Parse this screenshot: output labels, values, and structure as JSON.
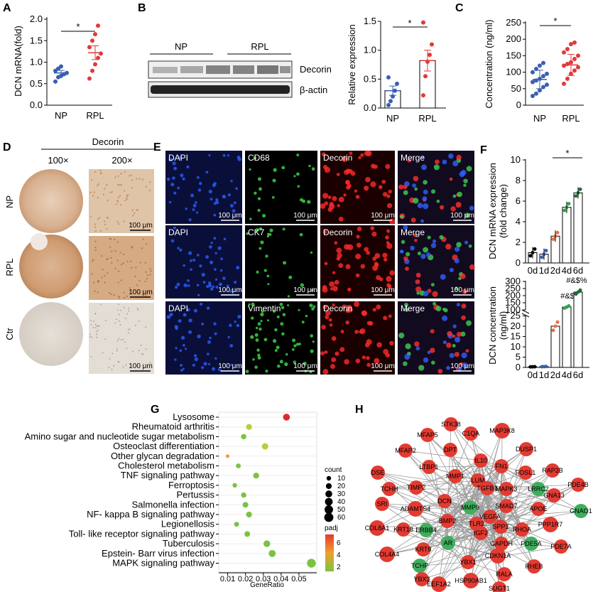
{
  "panels": {
    "A": "A",
    "B": "B",
    "C": "C",
    "D": "D",
    "E": "E",
    "F": "F",
    "G": "G",
    "H": "H"
  },
  "sig": "*",
  "panelA": {
    "ylabel": "DCN mRNA(fold)",
    "yticks": [
      "0.0",
      "0.5",
      "1.0",
      "1.5",
      "2.0"
    ],
    "groups": [
      "NP",
      "RPL"
    ],
    "means": [
      0.75,
      1.22
    ],
    "np_points": [
      0.55,
      0.65,
      0.68,
      0.72,
      0.75,
      0.8,
      0.85,
      0.9
    ],
    "rpl_points": [
      0.62,
      0.8,
      0.95,
      1.1,
      1.2,
      1.35,
      1.5,
      1.65,
      1.85
    ]
  },
  "panelB": {
    "blot_np": "NP",
    "blot_rpl": "RPL",
    "band1": "Decorin",
    "band2": "β-actin",
    "ylabel": "Relative expression",
    "yticks": [
      "0.0",
      "0.5",
      "1.0",
      "1.5"
    ],
    "groups": [
      "NP",
      "RPL"
    ],
    "means": [
      0.3,
      0.82
    ],
    "np_points": [
      0.05,
      0.12,
      0.2,
      0.3,
      0.42,
      0.53
    ],
    "rpl_points": [
      0.22,
      0.55,
      0.8,
      0.92,
      1.1,
      1.48
    ]
  },
  "panelC": {
    "ylabel": "Concentration (ng/ml)",
    "yticks": [
      "0",
      "50",
      "100",
      "150",
      "200",
      "250"
    ],
    "groups": [
      "NP",
      "RPL"
    ],
    "means": [
      78,
      122
    ],
    "np_points": [
      28,
      35,
      45,
      55,
      62,
      70,
      75,
      80,
      88,
      95,
      100,
      110,
      120,
      128
    ],
    "rpl_points": [
      65,
      80,
      95,
      105,
      115,
      120,
      125,
      130,
      140,
      150,
      160,
      170,
      185,
      190
    ]
  },
  "panelD": {
    "header": "Decorin",
    "col1": "100×",
    "col2": "200×",
    "rows": [
      "NP",
      "RPL",
      "Ctr"
    ],
    "scale": "100 μm"
  },
  "panelE": {
    "rows": [
      [
        "DAPI",
        "CD68",
        "Decorin",
        "Merge"
      ],
      [
        "DAPI",
        "CK7",
        "Decorin",
        "Merge"
      ],
      [
        "DAPI",
        "Vimentin",
        "Decorin",
        "Merge"
      ]
    ],
    "scale": "100 μm"
  },
  "panelF": {
    "top_ylabel1": "DCN mRNA expression",
    "top_ylabel2": "(fold change)",
    "top_yticks": [
      "0",
      "2",
      "4",
      "6",
      "8",
      "10"
    ],
    "top_means": [
      1.0,
      0.85,
      2.6,
      5.4,
      6.8
    ],
    "bottom_ylabel1": "DCN concentration",
    "bottom_ylabel2": "(ng/ml)",
    "bottom_yticks_low": [
      "0",
      "5",
      "10",
      "15",
      "20",
      "25"
    ],
    "bottom_yticks_high": [
      "100",
      "150",
      "200",
      "250",
      "300"
    ],
    "bottom_means": [
      0.3,
      0.4,
      20,
      120,
      225
    ],
    "ann1": "#&$",
    "ann2": "#&$%",
    "days": [
      "0d",
      "1d",
      "2d",
      "4d",
      "6d"
    ]
  },
  "chart_data": [
    {
      "type": "scatter",
      "panel": "A",
      "ylabel": "DCN mRNA(fold)",
      "categories": [
        "NP",
        "RPL"
      ],
      "ylim": [
        0,
        2.0
      ],
      "means": [
        0.75,
        1.22
      ]
    },
    {
      "type": "scatter",
      "panel": "B",
      "ylabel": "Relative expression",
      "categories": [
        "NP",
        "RPL"
      ],
      "ylim": [
        0,
        1.5
      ],
      "means": [
        0.3,
        0.82
      ]
    },
    {
      "type": "scatter",
      "panel": "C",
      "ylabel": "Concentration (ng/ml)",
      "categories": [
        "NP",
        "RPL"
      ],
      "ylim": [
        0,
        250
      ],
      "means": [
        78,
        122
      ]
    },
    {
      "type": "bar",
      "panel": "F-top",
      "ylabel": "DCN mRNA expression (fold change)",
      "categories": [
        "0d",
        "1d",
        "2d",
        "4d",
        "6d"
      ],
      "values": [
        1.0,
        0.85,
        2.6,
        5.4,
        6.8
      ],
      "ylim": [
        0,
        10
      ]
    },
    {
      "type": "bar",
      "panel": "F-bottom",
      "ylabel": "DCN concentration (ng/ml)",
      "categories": [
        "0d",
        "1d",
        "2d",
        "4d",
        "6d"
      ],
      "values": [
        0.3,
        0.4,
        20,
        120,
        225
      ],
      "ylim": [
        0,
        300
      ]
    },
    {
      "type": "scatter",
      "panel": "G",
      "xlabel": "GeneRatio",
      "xticks": [
        "0.01",
        "0.02",
        "0.03",
        "0.04",
        "0.05"
      ],
      "categories": [
        "Lysosome",
        "Rheumatoid arthritis",
        "Amino sugar and nucleotide sugar metabolism",
        "Osteoclast differentiation",
        "Other glycan degradation",
        "Cholesterol metabolism",
        "TNF signaling pathway",
        "Ferroptosis",
        "Pertussis",
        "Salmonella infection",
        "NF- kappa B signaling pathway",
        "Legionellosis",
        "Toll- like receptor signaling pathway",
        "Tuberculosis",
        "Epstein- Barr virus infection",
        "MAPK signaling pathway"
      ],
      "values": [
        0.043,
        0.022,
        0.019,
        0.031,
        0.01,
        0.016,
        0.026,
        0.014,
        0.019,
        0.02,
        0.022,
        0.015,
        0.021,
        0.032,
        0.035,
        0.057
      ],
      "count": [
        30,
        20,
        15,
        25,
        5,
        12,
        20,
        10,
        15,
        18,
        20,
        12,
        18,
        28,
        32,
        55
      ],
      "padj": [
        7,
        3,
        2,
        2.5,
        5,
        1.5,
        2,
        1.5,
        2,
        2,
        2.2,
        1.8,
        1.8,
        2,
        2,
        2
      ]
    }
  ],
  "panelG": {
    "terms": [
      "Lysosome",
      "Rheumatoid arthritis",
      "Amino sugar and nucleotide sugar metabolism",
      "Osteoclast differentiation",
      "Other glycan degradation",
      "Cholesterol metabolism",
      "TNF signaling pathway",
      "Ferroptosis",
      "Pertussis",
      "Salmonella infection",
      "NF- kappa B signaling pathway",
      "Legionellosis",
      "Toll- like receptor signaling pathway",
      "Tuberculosis",
      "Epstein- Barr virus infection",
      "MAPK signaling pathway"
    ],
    "xlabel": "GeneRatio",
    "xticks": [
      "0.01",
      "0.02",
      "0.03",
      "0.04",
      "0.05"
    ],
    "legend_count": "count",
    "count_vals": [
      "10",
      "20",
      "30",
      "40",
      "50",
      "60"
    ],
    "legend_padj": "padj",
    "padj_vals": [
      "6",
      "4",
      "2"
    ]
  },
  "panelH": {
    "nodes": [
      {
        "n": "STK38",
        "c": "r"
      },
      {
        "n": "C1QA",
        "c": "r"
      },
      {
        "n": "MAP3K8",
        "c": "r"
      },
      {
        "n": "MFAP5",
        "c": "r"
      },
      {
        "n": "DUSP1",
        "c": "r"
      },
      {
        "n": "MFAP2",
        "c": "r"
      },
      {
        "n": "DPT",
        "c": "r"
      },
      {
        "n": "IL10",
        "c": "r"
      },
      {
        "n": "FN1",
        "c": "r"
      },
      {
        "n": "FOSL1",
        "c": "r"
      },
      {
        "n": "RAP2B",
        "c": "r"
      },
      {
        "n": "DSE",
        "c": "r"
      },
      {
        "n": "LTBP1",
        "c": "r"
      },
      {
        "n": "MMP1",
        "c": "r"
      },
      {
        "n": "LUM",
        "c": "r"
      },
      {
        "n": "PDE4B",
        "c": "r"
      },
      {
        "n": "TCHH",
        "c": "r"
      },
      {
        "n": "TIMP2",
        "c": "r"
      },
      {
        "n": "TGFB1",
        "c": "r"
      },
      {
        "n": "MAPK3",
        "c": "r"
      },
      {
        "n": "LRRC2",
        "c": "g"
      },
      {
        "n": "GNA13",
        "c": "r"
      },
      {
        "n": "SRI",
        "c": "r"
      },
      {
        "n": "ADAMTS4",
        "c": "r"
      },
      {
        "n": "DCN",
        "c": "r"
      },
      {
        "n": "MMP9",
        "c": "g"
      },
      {
        "n": "SMAD7",
        "c": "r"
      },
      {
        "n": "APOE",
        "c": "r"
      },
      {
        "n": "GNAO1",
        "c": "g"
      },
      {
        "n": "BMP2",
        "c": "r"
      },
      {
        "n": "TLR2",
        "c": "r"
      },
      {
        "n": "VEGFA",
        "c": "r"
      },
      {
        "n": "SPP1",
        "c": "r"
      },
      {
        "n": "COL8A1",
        "c": "r"
      },
      {
        "n": "KRT18",
        "c": "r"
      },
      {
        "n": "ERBB4",
        "c": "g"
      },
      {
        "n": "IGF2",
        "c": "r"
      },
      {
        "n": "RHOA",
        "c": "r"
      },
      {
        "n": "PPP1R7",
        "c": "r"
      },
      {
        "n": "AR",
        "c": "g"
      },
      {
        "n": "GAPDH",
        "c": "r"
      },
      {
        "n": "PDE5A",
        "c": "g"
      },
      {
        "n": "PDE7A",
        "c": "r"
      },
      {
        "n": "COL4A4",
        "c": "r"
      },
      {
        "n": "KRT8",
        "c": "r"
      },
      {
        "n": "CDKN1A",
        "c": "r"
      },
      {
        "n": "TCHP",
        "c": "g"
      },
      {
        "n": "YBX1",
        "c": "r"
      },
      {
        "n": "RHEB",
        "c": "r"
      },
      {
        "n": "YBX3",
        "c": "r"
      },
      {
        "n": "RALA",
        "c": "r"
      },
      {
        "n": "HSP90AB1",
        "c": "r"
      },
      {
        "n": "EEF1A2",
        "c": "r"
      },
      {
        "n": "SUGT1",
        "c": "r"
      }
    ]
  }
}
